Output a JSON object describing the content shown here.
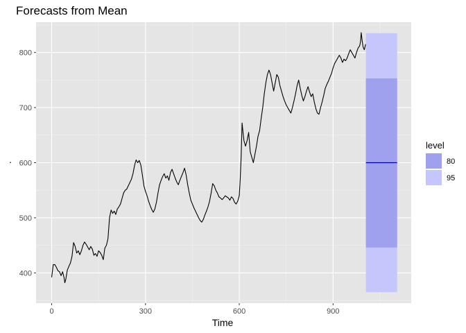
{
  "chart_data": {
    "type": "line",
    "title": "Forecasts from Mean",
    "xlabel": "Time",
    "ylabel": "·",
    "xlim": [
      -50,
      1150
    ],
    "ylim": [
      345,
      855
    ],
    "x_ticks": [
      0,
      300,
      600,
      900
    ],
    "y_ticks": [
      400,
      500,
      600,
      700,
      800
    ],
    "grid": true,
    "legend_position": "right",
    "series": [
      {
        "values": [
          [
            0,
            392
          ],
          [
            5,
            415
          ],
          [
            10,
            415
          ],
          [
            15,
            410
          ],
          [
            20,
            404
          ],
          [
            25,
            402
          ],
          [
            30,
            395
          ],
          [
            35,
            402
          ],
          [
            40,
            390
          ],
          [
            42,
            382
          ],
          [
            45,
            388
          ],
          [
            50,
            405
          ],
          [
            55,
            412
          ],
          [
            60,
            418
          ],
          [
            65,
            430
          ],
          [
            68,
            445
          ],
          [
            70,
            455
          ],
          [
            75,
            448
          ],
          [
            80,
            436
          ],
          [
            85,
            440
          ],
          [
            90,
            433
          ],
          [
            95,
            440
          ],
          [
            100,
            450
          ],
          [
            105,
            456
          ],
          [
            110,
            452
          ],
          [
            115,
            447
          ],
          [
            120,
            442
          ],
          [
            125,
            448
          ],
          [
            130,
            443
          ],
          [
            135,
            432
          ],
          [
            140,
            435
          ],
          [
            145,
            430
          ],
          [
            150,
            440
          ],
          [
            155,
            437
          ],
          [
            160,
            432
          ],
          [
            165,
            424
          ],
          [
            170,
            445
          ],
          [
            175,
            450
          ],
          [
            180,
            462
          ],
          [
            185,
            500
          ],
          [
            190,
            514
          ],
          [
            195,
            508
          ],
          [
            200,
            512
          ],
          [
            205,
            506
          ],
          [
            210,
            516
          ],
          [
            215,
            520
          ],
          [
            220,
            525
          ],
          [
            225,
            535
          ],
          [
            230,
            545
          ],
          [
            235,
            550
          ],
          [
            240,
            552
          ],
          [
            245,
            558
          ],
          [
            250,
            564
          ],
          [
            255,
            570
          ],
          [
            260,
            580
          ],
          [
            265,
            595
          ],
          [
            270,
            605
          ],
          [
            275,
            600
          ],
          [
            280,
            604
          ],
          [
            285,
            596
          ],
          [
            290,
            578
          ],
          [
            295,
            558
          ],
          [
            300,
            548
          ],
          [
            305,
            540
          ],
          [
            310,
            530
          ],
          [
            315,
            522
          ],
          [
            320,
            515
          ],
          [
            325,
            510
          ],
          [
            330,
            516
          ],
          [
            335,
            528
          ],
          [
            340,
            545
          ],
          [
            345,
            560
          ],
          [
            350,
            568
          ],
          [
            355,
            575
          ],
          [
            360,
            580
          ],
          [
            365,
            572
          ],
          [
            370,
            576
          ],
          [
            375,
            568
          ],
          [
            380,
            582
          ],
          [
            385,
            588
          ],
          [
            390,
            580
          ],
          [
            395,
            572
          ],
          [
            400,
            565
          ],
          [
            405,
            560
          ],
          [
            410,
            568
          ],
          [
            415,
            575
          ],
          [
            420,
            582
          ],
          [
            425,
            590
          ],
          [
            430,
            578
          ],
          [
            435,
            560
          ],
          [
            440,
            545
          ],
          [
            445,
            532
          ],
          [
            450,
            525
          ],
          [
            455,
            518
          ],
          [
            460,
            512
          ],
          [
            465,
            506
          ],
          [
            470,
            500
          ],
          [
            475,
            495
          ],
          [
            480,
            492
          ],
          [
            485,
            497
          ],
          [
            490,
            505
          ],
          [
            495,
            512
          ],
          [
            500,
            520
          ],
          [
            505,
            530
          ],
          [
            510,
            545
          ],
          [
            515,
            562
          ],
          [
            520,
            558
          ],
          [
            525,
            550
          ],
          [
            530,
            545
          ],
          [
            535,
            538
          ],
          [
            540,
            536
          ],
          [
            545,
            533
          ],
          [
            550,
            536
          ],
          [
            555,
            540
          ],
          [
            560,
            538
          ],
          [
            565,
            536
          ],
          [
            570,
            532
          ],
          [
            575,
            538
          ],
          [
            580,
            535
          ],
          [
            585,
            528
          ],
          [
            590,
            525
          ],
          [
            595,
            530
          ],
          [
            600,
            540
          ],
          [
            603,
            570
          ],
          [
            606,
            610
          ],
          [
            609,
            672
          ],
          [
            612,
            655
          ],
          [
            615,
            640
          ],
          [
            620,
            630
          ],
          [
            625,
            640
          ],
          [
            630,
            655
          ],
          [
            635,
            620
          ],
          [
            640,
            610
          ],
          [
            645,
            600
          ],
          [
            650,
            615
          ],
          [
            655,
            630
          ],
          [
            660,
            648
          ],
          [
            665,
            658
          ],
          [
            670,
            680
          ],
          [
            675,
            700
          ],
          [
            680,
            725
          ],
          [
            685,
            745
          ],
          [
            690,
            760
          ],
          [
            695,
            768
          ],
          [
            700,
            760
          ],
          [
            705,
            745
          ],
          [
            710,
            730
          ],
          [
            715,
            745
          ],
          [
            720,
            760
          ],
          [
            725,
            755
          ],
          [
            730,
            740
          ],
          [
            735,
            730
          ],
          [
            740,
            720
          ],
          [
            745,
            712
          ],
          [
            750,
            705
          ],
          [
            755,
            700
          ],
          [
            760,
            695
          ],
          [
            765,
            690
          ],
          [
            770,
            700
          ],
          [
            775,
            712
          ],
          [
            780,
            725
          ],
          [
            785,
            740
          ],
          [
            790,
            750
          ],
          [
            795,
            735
          ],
          [
            800,
            722
          ],
          [
            805,
            712
          ],
          [
            810,
            720
          ],
          [
            815,
            730
          ],
          [
            820,
            738
          ],
          [
            825,
            728
          ],
          [
            830,
            720
          ],
          [
            835,
            725
          ],
          [
            840,
            710
          ],
          [
            845,
            698
          ],
          [
            850,
            690
          ],
          [
            855,
            688
          ],
          [
            860,
            700
          ],
          [
            865,
            710
          ],
          [
            870,
            722
          ],
          [
            875,
            735
          ],
          [
            880,
            742
          ],
          [
            885,
            748
          ],
          [
            890,
            755
          ],
          [
            895,
            762
          ],
          [
            900,
            772
          ],
          [
            905,
            780
          ],
          [
            910,
            785
          ],
          [
            915,
            790
          ],
          [
            920,
            795
          ],
          [
            925,
            790
          ],
          [
            930,
            782
          ],
          [
            935,
            788
          ],
          [
            940,
            785
          ],
          [
            945,
            790
          ],
          [
            950,
            798
          ],
          [
            955,
            805
          ],
          [
            960,
            800
          ],
          [
            965,
            795
          ],
          [
            970,
            790
          ],
          [
            975,
            800
          ],
          [
            980,
            808
          ],
          [
            985,
            812
          ],
          [
            988,
            820
          ],
          [
            990,
            836
          ],
          [
            993,
            822
          ],
          [
            996,
            810
          ],
          [
            1000,
            805
          ],
          [
            1004,
            815
          ]
        ]
      }
    ],
    "forecast": {
      "x_start": 1005,
      "x_end": 1105,
      "point": 600,
      "levels": [
        {
          "level": "80",
          "lower": 446,
          "upper": 753,
          "color": "#9fa1ee"
        },
        {
          "level": "95",
          "lower": 365,
          "upper": 835,
          "color": "#c5c7fc"
        }
      ],
      "line_color": "#0000aa"
    },
    "legend": {
      "title": "level",
      "entries": [
        {
          "label": "80",
          "color": "#9fa1ee"
        },
        {
          "label": "95",
          "color": "#c5c7fc"
        }
      ]
    },
    "colors": {
      "panel": "#e5e5e5",
      "grid_major": "#ffffff",
      "line": "#000000"
    }
  }
}
